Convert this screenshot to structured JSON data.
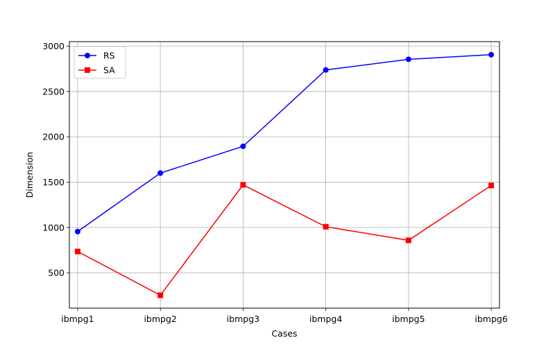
{
  "chart_data": {
    "type": "line",
    "title": "",
    "xlabel": "Cases",
    "ylabel": "Dimension",
    "categories": [
      "ibmpg1",
      "ibmpg2",
      "ibmpg3",
      "ibmpg4",
      "ibmpg5",
      "ibmpg6"
    ],
    "ylim": [
      110,
      3050
    ],
    "yticks": [
      500,
      1000,
      1500,
      2000,
      2500,
      3000
    ],
    "grid": true,
    "legend_position": "top-left",
    "series": [
      {
        "name": "RS",
        "color": "#0000ff",
        "marker": "circle",
        "values": [
          955,
          1600,
          1895,
          2738,
          2855,
          2906
        ]
      },
      {
        "name": "SA",
        "color": "#ff0000",
        "marker": "square",
        "values": [
          735,
          252,
          1470,
          1008,
          858,
          1463
        ]
      }
    ]
  }
}
